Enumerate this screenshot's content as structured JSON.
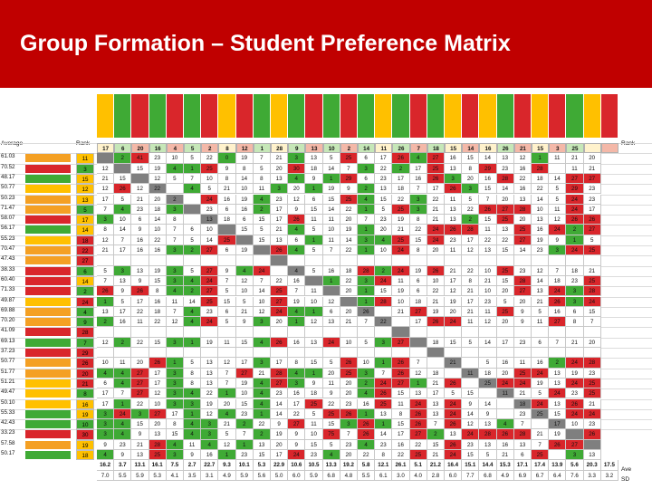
{
  "slide": {
    "title": "Group Formation – Student Preference Matrix"
  },
  "sheet": {
    "label_average": "Average",
    "label_rank": "Rank",
    "label_rank_right": "Rank",
    "label_ave": "Ave",
    "label_sd": "SD",
    "colors": {
      "red": "#d9262b",
      "green": "#3faa35",
      "yellow": "#ffc000",
      "orange": "#f4a024",
      "light_red": "#f4b8a8",
      "light_green": "#c6e7b8",
      "title_red": "#c00000"
    },
    "header_colors": [
      "yellow",
      "green",
      "red",
      "green",
      "red",
      "green",
      "red",
      "yellow",
      "red",
      "green",
      "yellow",
      "green",
      "red",
      "green",
      "red",
      "green",
      "yellow",
      "green",
      "red",
      "green",
      "yellow",
      "red",
      "yellow",
      "green",
      "red",
      "yellow",
      "red",
      "green",
      "yellow",
      "red",
      "red",
      "red",
      "red"
    ],
    "header_ranks": [
      "17",
      "6",
      "20",
      "16",
      "4",
      "5",
      "2",
      "8",
      "12",
      "1",
      "28",
      "9",
      "13",
      "10",
      "2",
      "14",
      "11",
      "26",
      "7",
      "18",
      "15",
      "14",
      "16",
      "26",
      "21",
      "15",
      "3",
      "25",
      "",
      "",
      "",
      "",
      ""
    ],
    "rows": [
      {
        "avg": "61.03",
        "rank": "11",
        "name_color": "orange",
        "rank_color": "yellow"
      },
      {
        "avg": "70.52",
        "rank": "3",
        "name_color": "red",
        "rank_color": "green"
      },
      {
        "avg": "48.17",
        "rank": "15",
        "name_color": "green",
        "rank_color": "yellow"
      },
      {
        "avg": "50.77",
        "rank": "12",
        "name_color": "yellow",
        "rank_color": "yellow"
      },
      {
        "avg": "50.23",
        "rank": "13",
        "name_color": "orange",
        "rank_color": "yellow"
      },
      {
        "avg": "71.47",
        "rank": "5",
        "name_color": "orange",
        "rank_color": "green"
      },
      {
        "avg": "58.07",
        "rank": "17",
        "name_color": "red",
        "rank_color": "yellow"
      },
      {
        "avg": "56.17",
        "rank": "14",
        "name_color": "green",
        "rank_color": "yellow"
      },
      {
        "avg": "55.23",
        "rank": "18",
        "name_color": "yellow",
        "rank_color": "red"
      },
      {
        "avg": "70.47",
        "rank": "22",
        "name_color": "orange",
        "rank_color": "red"
      },
      {
        "avg": "47.43",
        "rank": "27",
        "name_color": "orange",
        "rank_color": "red"
      },
      {
        "avg": "38.33",
        "rank": "6",
        "name_color": "red",
        "rank_color": "green"
      },
      {
        "avg": "60.40",
        "rank": "14",
        "name_color": "red",
        "rank_color": "yellow"
      },
      {
        "avg": "71.33",
        "rank": "2",
        "name_color": "red",
        "rank_color": "green"
      },
      {
        "avg": "49.87",
        "rank": "24",
        "name_color": "yellow",
        "rank_color": "red"
      },
      {
        "avg": "69.88",
        "rank": "4",
        "name_color": "orange",
        "rank_color": "green"
      },
      {
        "avg": "70.20",
        "rank": "9",
        "name_color": "orange",
        "rank_color": "green"
      },
      {
        "avg": "41.09",
        "rank": "28",
        "name_color": "red",
        "rank_color": "red"
      },
      {
        "avg": "69.13",
        "rank": "7",
        "name_color": "green",
        "rank_color": "green"
      },
      {
        "avg": "37.23",
        "rank": "29",
        "name_color": "red",
        "rank_color": "red"
      },
      {
        "avg": "50.77",
        "rank": "26",
        "name_color": "orange",
        "rank_color": "red"
      },
      {
        "avg": "51.77",
        "rank": "20",
        "name_color": "orange",
        "rank_color": "red"
      },
      {
        "avg": "51.21",
        "rank": "21",
        "name_color": "yellow",
        "rank_color": "red"
      },
      {
        "avg": "49.47",
        "rank": "8",
        "name_color": "yellow",
        "rank_color": "green"
      },
      {
        "avg": "50.10",
        "rank": "16",
        "name_color": "yellow",
        "rank_color": "yellow"
      },
      {
        "avg": "55.33",
        "rank": "19",
        "name_color": "green",
        "rank_color": "yellow"
      },
      {
        "avg": "42.43",
        "rank": "10",
        "name_color": "green",
        "rank_color": "green"
      },
      {
        "avg": "33.23",
        "rank": "30",
        "name_color": "red",
        "rank_color": "red"
      },
      {
        "avg": "57.58",
        "rank": "19",
        "name_color": "orange",
        "rank_color": "yellow"
      },
      {
        "avg": "50.17",
        "rank": "18",
        "name_color": "green",
        "rank_color": "yellow"
      }
    ],
    "matrix": [
      [
        "",
        "2",
        "41",
        "23",
        "10",
        "5",
        "22",
        "0",
        "19",
        "7",
        "21",
        "3",
        "13",
        "5",
        "25",
        "6",
        "17",
        "26",
        "4",
        "27",
        "16",
        "15",
        "14",
        "13",
        "12",
        "1",
        "11",
        "21",
        "20"
      ],
      [
        "12",
        "",
        "15",
        "19",
        "4",
        "1",
        "25",
        "9",
        "8",
        "5",
        "20",
        "30",
        "18",
        "14",
        "7",
        "3",
        "22",
        "2",
        "17",
        "25",
        "13",
        "8",
        "29",
        "23",
        "16",
        "28",
        "",
        "11",
        "21"
      ],
      [
        "21",
        "15",
        "",
        "12",
        "5",
        "7",
        "10",
        "8",
        "14",
        "8",
        "13",
        "4",
        "9",
        "1",
        "29",
        "6",
        "23",
        "17",
        "16",
        "26",
        "3",
        "20",
        "16",
        "28",
        "22",
        "18",
        "14",
        "27",
        "27"
      ],
      [
        "12",
        "26",
        "12",
        "22",
        "",
        "4",
        "5",
        "21",
        "10",
        "11",
        "3",
        "20",
        "1",
        "19",
        "9",
        "2",
        "13",
        "18",
        "7",
        "17",
        "26",
        "3",
        "15",
        "14",
        "16",
        "22",
        "5",
        "29",
        "23"
      ],
      [
        "17",
        "5",
        "21",
        "20",
        "2",
        "",
        "24",
        "16",
        "19",
        "4",
        "23",
        "12",
        "6",
        "15",
        "25",
        "4",
        "15",
        "22",
        "3",
        "22",
        "11",
        "5",
        "7",
        "20",
        "13",
        "14",
        "5",
        "24",
        "23"
      ],
      [
        "7",
        "4",
        "23",
        "18",
        "3",
        "",
        "23",
        "6",
        "16",
        "2",
        "17",
        "9",
        "15",
        "14",
        "22",
        "1",
        "5",
        "25",
        "3",
        "21",
        "13",
        "22",
        "26",
        "27",
        "28",
        "10",
        "11",
        "24",
        "17"
      ],
      [
        "3",
        "10",
        "6",
        "14",
        "8",
        "",
        "13",
        "18",
        "6",
        "15",
        "17",
        "26",
        "11",
        "11",
        "20",
        "7",
        "23",
        "19",
        "8",
        "21",
        "13",
        "2",
        "15",
        "25",
        "20",
        "13",
        "12",
        "26",
        "26"
      ],
      [
        "8",
        "14",
        "9",
        "10",
        "7",
        "6",
        "10",
        "",
        "15",
        "5",
        "21",
        "4",
        "5",
        "10",
        "19",
        "1",
        "20",
        "21",
        "22",
        "24",
        "26",
        "28",
        "11",
        "13",
        "25",
        "16",
        "24",
        "2",
        "27"
      ],
      [
        "12",
        "7",
        "16",
        "22",
        "7",
        "5",
        "14",
        "25",
        "",
        "15",
        "13",
        "6",
        "1",
        "11",
        "14",
        "3",
        "4",
        "25",
        "15",
        "24",
        "23",
        "17",
        "22",
        "22",
        "27",
        "19",
        "9",
        "1",
        "5"
      ],
      [
        "21",
        "17",
        "16",
        "16",
        "3",
        "2",
        "27",
        "6",
        "19",
        "",
        "26",
        "4",
        "5",
        "7",
        "22",
        "1",
        "10",
        "24",
        "8",
        "20",
        "11",
        "12",
        "13",
        "15",
        "14",
        "23",
        "3",
        "24",
        "25"
      ],
      [
        "",
        "",
        "",
        "",
        "",
        "",
        "",
        "",
        "",
        "",
        "",
        "",
        "",
        "",
        "",
        "",
        "",
        "",
        "",
        "",
        "",
        "",
        "",
        "",
        "",
        "",
        "",
        "",
        ""
      ],
      [
        "5",
        "3",
        "13",
        "19",
        "3",
        "5",
        "27",
        "9",
        "4",
        "24",
        "",
        "4",
        "5",
        "16",
        "18",
        "28",
        "2",
        "24",
        "19",
        "26",
        "21",
        "22",
        "10",
        "25",
        "23",
        "12",
        "7",
        "18",
        "21"
      ],
      [
        "7",
        "13",
        "9",
        "15",
        "3",
        "4",
        "24",
        "7",
        "12",
        "7",
        "22",
        "16",
        "",
        "1",
        "22",
        "3",
        "24",
        "11",
        "6",
        "10",
        "17",
        "8",
        "21",
        "15",
        "28",
        "14",
        "18",
        "23",
        "25"
      ],
      [
        "26",
        "9",
        "26",
        "8",
        "4",
        "2",
        "27",
        "5",
        "10",
        "14",
        "25",
        "7",
        "11",
        "",
        "20",
        "1",
        "15",
        "19",
        "6",
        "22",
        "12",
        "21",
        "10",
        "20",
        "27",
        "13",
        "24",
        "3",
        "28"
      ],
      [
        "1",
        "5",
        "17",
        "16",
        "11",
        "14",
        "25",
        "15",
        "5",
        "10",
        "27",
        "19",
        "10",
        "12",
        "",
        "1",
        "28",
        "10",
        "18",
        "21",
        "19",
        "17",
        "23",
        "5",
        "20",
        "21",
        "26",
        "3",
        "24"
      ],
      [
        "13",
        "17",
        "22",
        "18",
        "7",
        "4",
        "23",
        "6",
        "21",
        "12",
        "24",
        "4",
        "1",
        "6",
        "20",
        "26",
        "",
        "21",
        "27",
        "19",
        "20",
        "21",
        "11",
        "25",
        "9",
        "5",
        "16",
        "6",
        "15"
      ],
      [
        "2",
        "16",
        "11",
        "22",
        "12",
        "4",
        "24",
        "5",
        "9",
        "3",
        "20",
        "1",
        "12",
        "13",
        "21",
        "7",
        "22",
        "",
        "17",
        "26",
        "24",
        "11",
        "12",
        "20",
        "9",
        "11",
        "27",
        "8",
        "7"
      ],
      [
        "",
        "",
        "",
        "",
        "",
        "",
        "",
        "",
        "",
        "",
        "",
        "",
        "",
        "",
        "",
        "",
        "",
        "",
        "",
        "",
        "",
        "",
        "",
        "",
        "",
        "",
        "",
        "",
        ""
      ],
      [
        "12",
        "2",
        "22",
        "15",
        "3",
        "1",
        "19",
        "11",
        "15",
        "4",
        "26",
        "16",
        "13",
        "24",
        "10",
        "5",
        "3",
        "27",
        "",
        "18",
        "15",
        "5",
        "14",
        "17",
        "23",
        "6",
        "7",
        "21",
        "20"
      ],
      [
        "",
        "",
        "",
        "",
        "",
        "",
        "",
        "",
        "",
        "",
        "",
        "",
        "",
        "",
        "",
        "",
        "",
        "",
        "",
        "",
        "",
        "",
        "",
        "",
        "",
        "",
        "",
        "",
        ""
      ],
      [
        "10",
        "11",
        "20",
        "26",
        "1",
        "5",
        "13",
        "12",
        "17",
        "3",
        "17",
        "8",
        "15",
        "5",
        "26",
        "10",
        "1",
        "26",
        "7",
        "",
        "21",
        "",
        "5",
        "16",
        "11",
        "16",
        "2",
        "24",
        "28"
      ],
      [
        "4",
        "4",
        "27",
        "17",
        "3",
        "8",
        "13",
        "7",
        "27",
        "21",
        "28",
        "4",
        "1",
        "20",
        "25",
        "3",
        "7",
        "26",
        "12",
        "18",
        "",
        "11",
        "18",
        "20",
        "25",
        "24",
        "13",
        "19",
        "23"
      ],
      [
        "6",
        "4",
        "27",
        "17",
        "3",
        "8",
        "13",
        "7",
        "19",
        "4",
        "27",
        "3",
        "9",
        "11",
        "20",
        "2",
        "24",
        "27",
        "1",
        "21",
        "26",
        "",
        "25",
        "24",
        "24",
        "19",
        "13",
        "24",
        "25"
      ],
      [
        "17",
        "7",
        "27",
        "12",
        "3",
        "4",
        "22",
        "1",
        "10",
        "4",
        "23",
        "16",
        "18",
        "9",
        "20",
        "4",
        "26",
        "15",
        "13",
        "17",
        "5",
        "15",
        "",
        "11",
        "21",
        "5",
        "24",
        "23",
        "25"
      ],
      [
        "17",
        "1",
        "22",
        "10",
        "3",
        "3",
        "19",
        "20",
        "15",
        "4",
        "14",
        "17",
        "25",
        "22",
        "23",
        "16",
        "25",
        "11",
        "24",
        "13",
        "24",
        "9",
        "14",
        "",
        "18",
        "24",
        "13",
        "26",
        "21"
      ],
      [
        "3",
        "24",
        "3",
        "27",
        "17",
        "1",
        "12",
        "4",
        "23",
        "1",
        "14",
        "22",
        "5",
        "25",
        "26",
        "1",
        "13",
        "8",
        "26",
        "13",
        "24",
        "14",
        "9",
        "",
        "23",
        "25",
        "15",
        "24",
        "24"
      ],
      [
        "3",
        "4",
        "15",
        "20",
        "8",
        "4",
        "3",
        "21",
        "2",
        "22",
        "9",
        "27",
        "11",
        "15",
        "3",
        "26",
        "1",
        "15",
        "26",
        "7",
        "26",
        "12",
        "13",
        "4",
        "7",
        "",
        "17",
        "10",
        "23"
      ],
      [
        "3",
        "4",
        "9",
        "13",
        "15",
        "4",
        "3",
        "5",
        "7",
        "2",
        "19",
        "9",
        "10",
        "75",
        "7",
        "26",
        "14",
        "17",
        "27",
        "2",
        "13",
        "24",
        "28",
        "26",
        "28",
        "21",
        "19",
        "",
        "26"
      ],
      [
        "9",
        "23",
        "21",
        "28",
        "4",
        "11",
        "4",
        "12",
        "1",
        "13",
        "20",
        "9",
        "15",
        "5",
        "23",
        "4",
        "23",
        "16",
        "22",
        "15",
        "26",
        "23",
        "13",
        "16",
        "13",
        "7",
        "26",
        "27",
        ""
      ],
      [
        "4",
        "9",
        "13",
        "25",
        "3",
        "9",
        "16",
        "1",
        "23",
        "15",
        "17",
        "24",
        "23",
        "4",
        "20",
        "22",
        "8",
        "22",
        "25",
        "21",
        "24",
        "15",
        "5",
        "21",
        "6",
        "25",
        "",
        "3",
        "13"
      ]
    ],
    "footer_ave": [
      "16.2",
      "3.7",
      "13.1",
      "16.1",
      "7.5",
      "2.7",
      "22.7",
      "9.3",
      "10.1",
      "5.3",
      "22.9",
      "10.6",
      "10.5",
      "13.3",
      "19.2",
      "5.8",
      "12.1",
      "26.1",
      "5.1",
      "21.2",
      "16.4",
      "15.1",
      "14.4",
      "15.3",
      "17.1",
      "17.4",
      "13.9",
      "5.6",
      "20.3",
      "17.5"
    ],
    "footer_sd": [
      "7.0",
      "5.5",
      "5.9",
      "5.3",
      "4.1",
      "3.5",
      "3.1",
      "4.9",
      "5.9",
      "5.6",
      "5.0",
      "6.0",
      "5.9",
      "6.8",
      "4.8",
      "5.5",
      "6.1",
      "3.0",
      "4.0",
      "2.8",
      "6.0",
      "7.7",
      "6.8",
      "4.9",
      "6.9",
      "6.7",
      "6.4",
      "7.6",
      "3.3",
      "3.2"
    ]
  }
}
